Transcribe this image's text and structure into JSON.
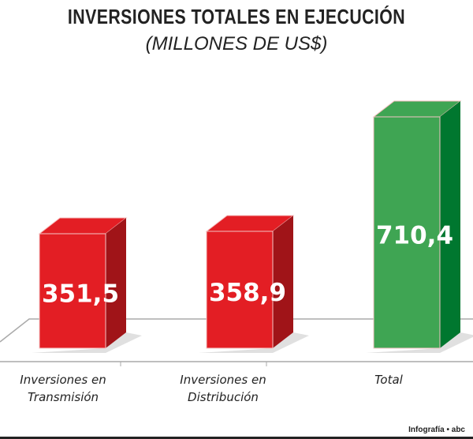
{
  "chart_data": {
    "type": "bar",
    "title": "INVERSIONES TOTALES EN EJECUCIÓN",
    "subtitle": "(MILLONES DE US$)",
    "categories": [
      "Inversiones en\nTransmisión",
      "Inversiones en\nDistribución",
      "Total"
    ],
    "values": [
      351.5,
      358.9,
      710.4
    ],
    "value_labels": [
      "351,5",
      "358,9",
      "710,4"
    ],
    "colors": [
      "#e31e24",
      "#e31e24",
      "#3fa553"
    ],
    "side_colors": [
      "#a01418",
      "#a01418",
      "#00772f"
    ],
    "ylim": [
      0,
      710.4
    ],
    "style": "3d",
    "grid": false
  },
  "credit": "Infografía • abc"
}
